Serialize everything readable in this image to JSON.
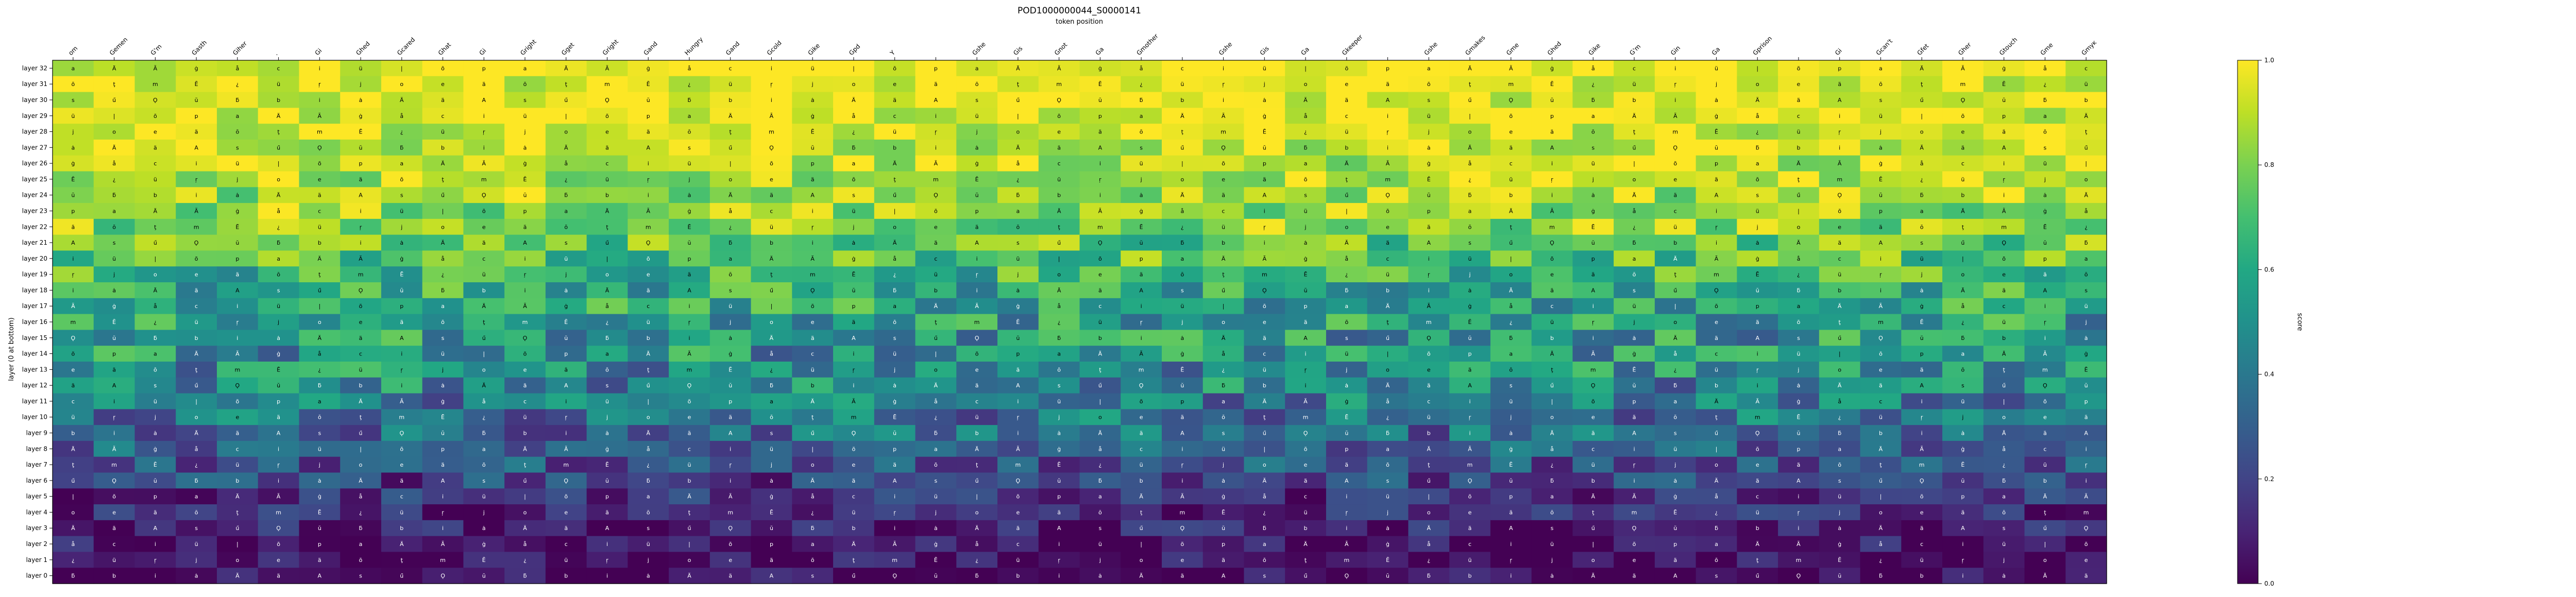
{
  "chart_data": {
    "type": "heatmap",
    "title": "POD1000000044_S0000141",
    "xlabel": "token position",
    "ylabel": "layer (0 at bottom)",
    "colorbar_label": "score",
    "colorbar_ticks": [
      "0.0",
      "0.2",
      "0.4",
      "0.6",
      "0.8",
      "1.0"
    ],
    "colorbar_range": [
      0,
      1
    ],
    "colormap": "viridis",
    "x_tokens": [
      "om",
      "Gemen",
      "G'm",
      "Gasth",
      "Giher",
      ".",
      "Gi",
      "Ghed",
      "Gcared",
      "Ghat",
      "Gi",
      "Gright",
      "Gget",
      "Gright",
      "Gand",
      "Hungry",
      "Gand",
      "Gcold",
      "Gike",
      "Gpd",
      "Y",
      "",
      "Gshe",
      "Gis",
      "Gnot",
      "Ga",
      "Gmother",
      "",
      "Gshe",
      "Gis",
      "Ga",
      "Gkeeper",
      "",
      "Gshe",
      "Gmakes",
      "Gme",
      "Ghed",
      "Gike",
      "G'm",
      "Gin",
      "Ga",
      "Gprison",
      "",
      "Gi",
      "Gcan't",
      "Gfet",
      "Gher",
      "Gtouch",
      "Gme",
      "Gmyĸ"
    ],
    "y_labels": [
      "layer 32",
      "layer 31",
      "layer 30",
      "layer 29",
      "layer 28",
      "layer 27",
      "layer 26",
      "layer 25",
      "layer 24",
      "layer 23",
      "layer 22",
      "layer 21",
      "layer 20",
      "layer 19",
      "layer 18",
      "layer 17",
      "layer 16",
      "layer 15",
      "layer 14",
      "layer 13",
      "layer 12",
      "layer 11",
      "layer 10",
      "layer 9",
      "layer 8",
      "layer 7",
      "layer 6",
      "layer 5",
      "layer 4",
      "layer 3",
      "layer 2",
      "layer 1",
      "layer 0"
    ],
    "cell_glyphs": [
      "a",
      "e",
      "ȧ",
      "Ä",
      "ä",
      "Ä",
      "Ã",
      "ō",
      "ä",
      "ġ",
      "ţ",
      "A",
      "å",
      "m",
      "s",
      "c",
      "Ē",
      "ű",
      "i",
      "¿",
      "Ǫ",
      "ü",
      "ü",
      "ŭ",
      "|",
      "ŗ",
      "ƃ",
      "õ",
      "j",
      "b",
      "p",
      "o",
      "i"
    ],
    "row_profile": [
      0.98,
      0.97,
      0.97,
      0.96,
      0.94,
      0.92,
      0.9,
      0.88,
      0.86,
      0.84,
      0.82,
      0.75,
      0.72,
      0.65,
      0.6,
      0.56,
      0.54,
      0.52,
      0.5,
      0.48,
      0.45,
      0.42,
      0.38,
      0.33,
      0.3,
      0.25,
      0.2,
      0.15,
      0.11,
      0.08,
      0.05,
      0.04,
      0.02
    ]
  }
}
